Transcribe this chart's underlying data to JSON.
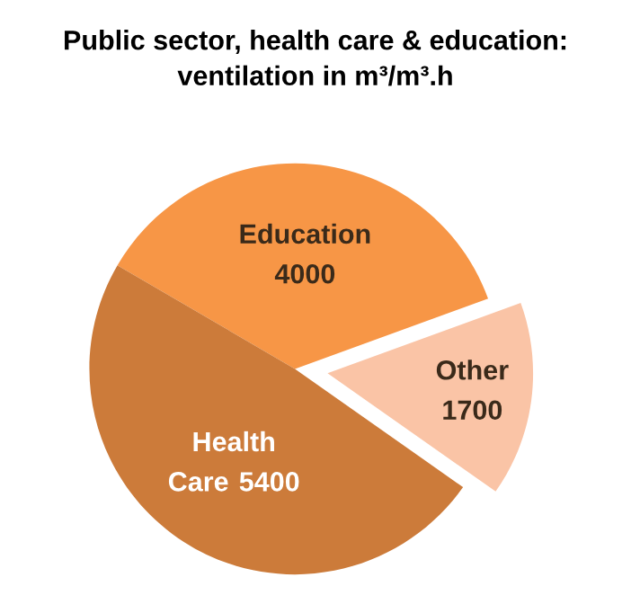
{
  "chart_data": {
    "type": "pie",
    "title": "Public sector, health care & education:\nventilation in m³/m³.h",
    "categories": [
      "Education",
      "Health Care",
      "Other"
    ],
    "values": [
      4000,
      5400,
      1700
    ],
    "colors": [
      "#f79646",
      "#cc7b3a",
      "#fac4a6"
    ],
    "data_labels": true
  }
}
